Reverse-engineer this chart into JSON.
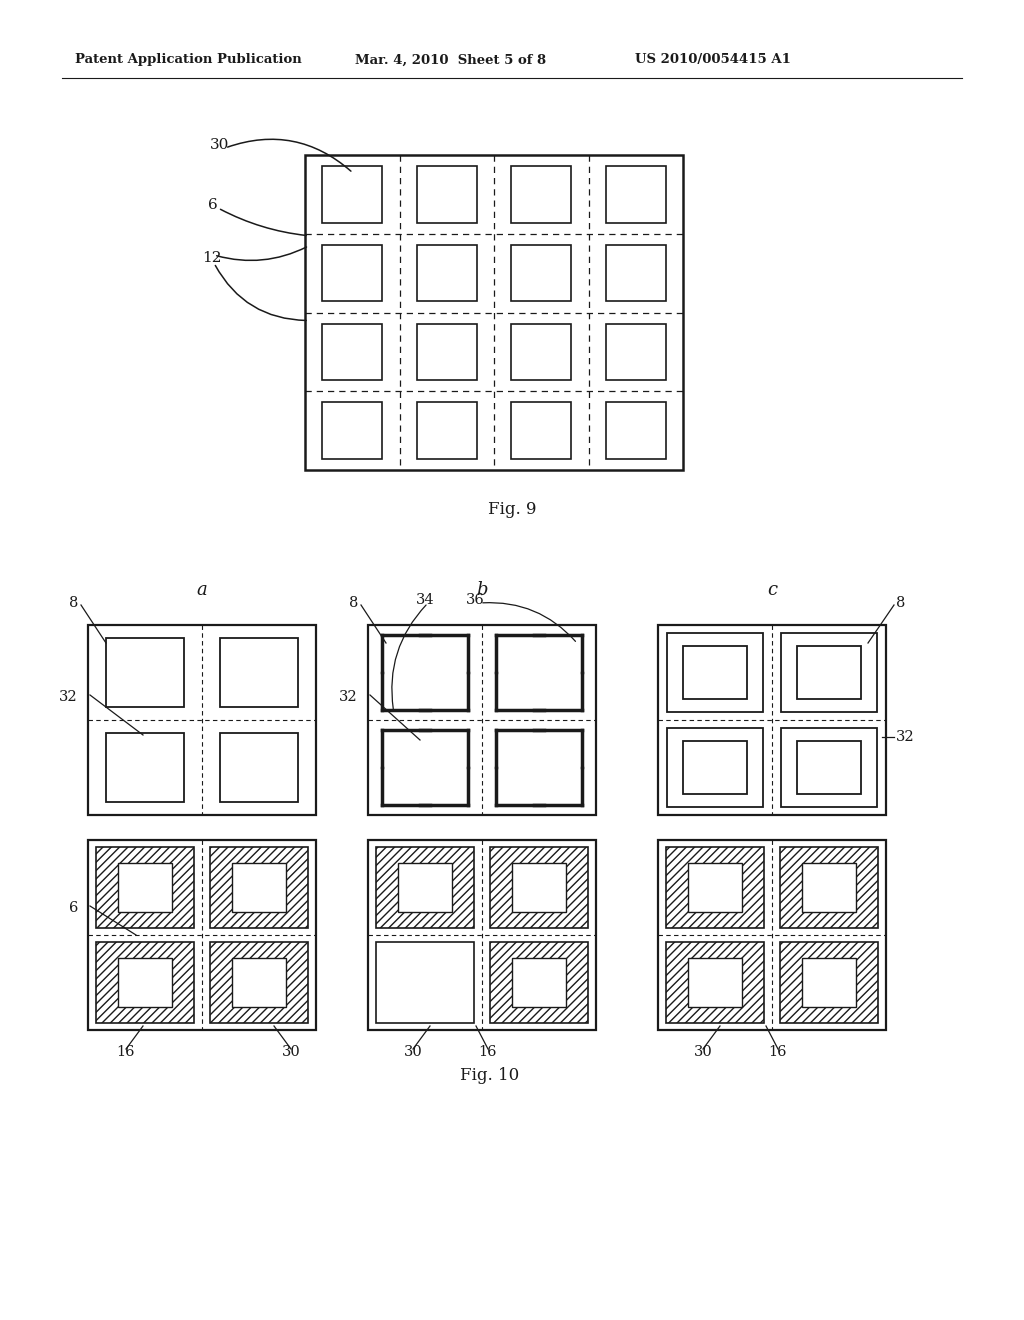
{
  "header_left": "Patent Application Publication",
  "header_mid": "Mar. 4, 2010  Sheet 5 of 8",
  "header_right": "US 2010/0054415 A1",
  "fig9_label": "Fig. 9",
  "fig10_label": "Fig. 10",
  "bg_color": "#ffffff",
  "line_color": "#1a1a1a"
}
